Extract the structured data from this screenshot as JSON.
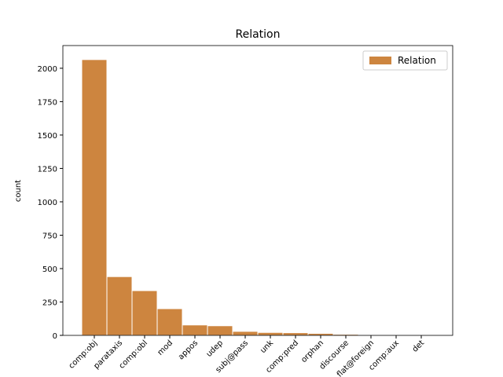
{
  "chart_data": {
    "type": "bar",
    "title": "Relation",
    "y_label": "count",
    "categories": [
      "comp:obj",
      "parataxis",
      "comp:obl",
      "mod",
      "appos",
      "udep",
      "subj@pass",
      "unk",
      "comp:pred",
      "orphan",
      "discourse",
      "flat@foreign",
      "comp:aux",
      "det"
    ],
    "series": [
      {
        "name": "Relation",
        "color": "#cd853f",
        "values": [
          2065,
          440,
          335,
          200,
          78,
          72,
          30,
          22,
          20,
          15,
          8,
          3,
          2,
          1
        ]
      }
    ],
    "ylim": [
      0,
      2170
    ],
    "yticks": [
      0,
      250,
      500,
      750,
      1000,
      1250,
      1500,
      1750,
      2000
    ],
    "legend": "upper right"
  }
}
